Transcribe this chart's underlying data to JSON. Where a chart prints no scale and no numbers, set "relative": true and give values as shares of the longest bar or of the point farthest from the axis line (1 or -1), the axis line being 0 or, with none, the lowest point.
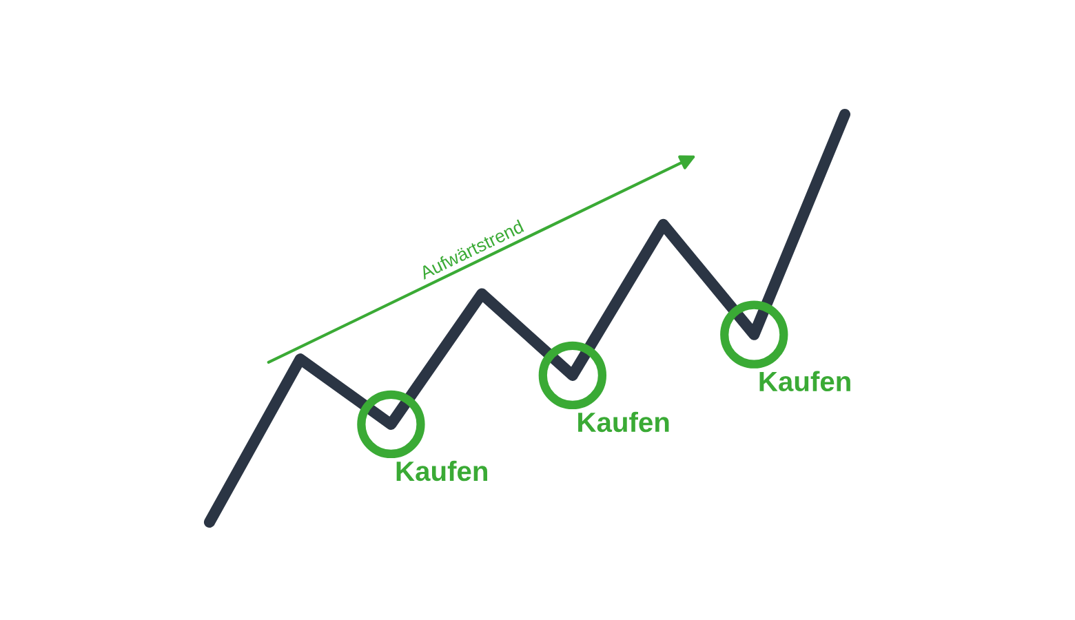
{
  "chart_data": {
    "type": "line",
    "relative": true,
    "categories": [
      null,
      null,
      null,
      null,
      null,
      null,
      null,
      null
    ],
    "series": [
      {
        "color": "#2b3544",
        "values": [
          0,
          0.4,
          0.24,
          0.56,
          0.36,
          0.73,
          0.46,
          1
        ]
      }
    ],
    "line_style": "solid",
    "annotations": [
      "Aufwärtstrend",
      "Kaufen",
      "Kaufen",
      "Kaufen"
    ]
  }
}
